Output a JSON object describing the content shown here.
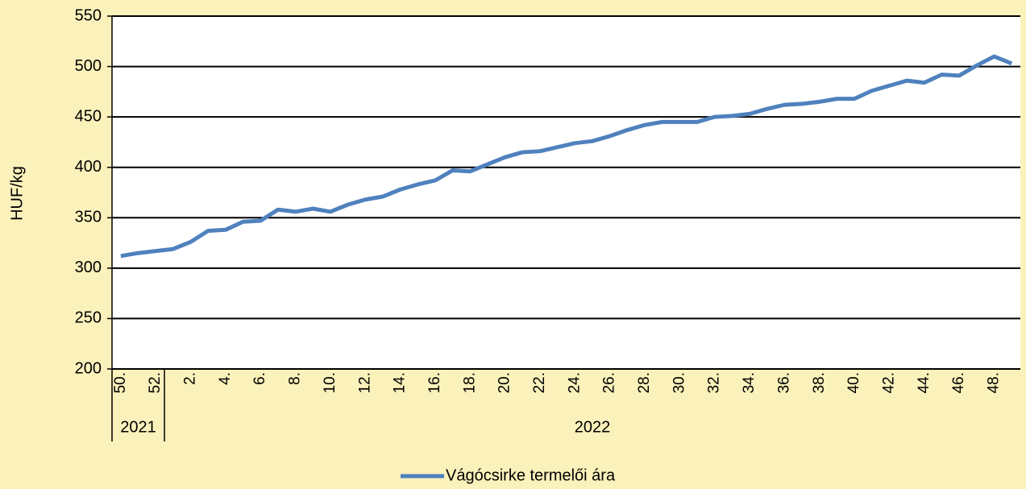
{
  "chart_data": {
    "type": "line",
    "ylabel": "HUF/kg",
    "categories": [
      "50.",
      null,
      "52.",
      null,
      "2.",
      null,
      "4.",
      null,
      "6.",
      null,
      "8.",
      null,
      "10.",
      null,
      "12.",
      null,
      "14.",
      null,
      "16.",
      null,
      "18.",
      null,
      "20.",
      null,
      "22.",
      null,
      "24.",
      null,
      "26.",
      null,
      "28.",
      null,
      "30.",
      null,
      "32.",
      null,
      "34.",
      null,
      "36.",
      null,
      "38.",
      null,
      "40.",
      null,
      "42.",
      null,
      "44.",
      null,
      "46.",
      null,
      "48.",
      null
    ],
    "x_groups": [
      {
        "label": "2021",
        "categories": 3
      },
      {
        "label": "2022",
        "categories": 49
      }
    ],
    "series": [
      {
        "name": "Vágócsirke termelői ára",
        "color": "#4f81bd",
        "values": [
          312,
          315,
          317,
          319,
          326,
          337,
          338,
          346,
          347,
          358,
          356,
          359,
          356,
          363,
          368,
          371,
          378,
          383,
          387,
          397,
          396,
          403,
          410,
          415,
          416,
          420,
          424,
          426,
          431,
          437,
          442,
          445,
          445,
          445,
          450,
          451,
          453,
          458,
          462,
          463,
          465,
          468,
          468,
          476,
          481,
          486,
          484,
          492,
          491,
          501,
          510,
          503
        ]
      }
    ],
    "ylim": [
      200,
      550
    ],
    "yticks": [
      200,
      250,
      300,
      350,
      400,
      450,
      500,
      550
    ],
    "grid": true,
    "legend": "bottom"
  }
}
